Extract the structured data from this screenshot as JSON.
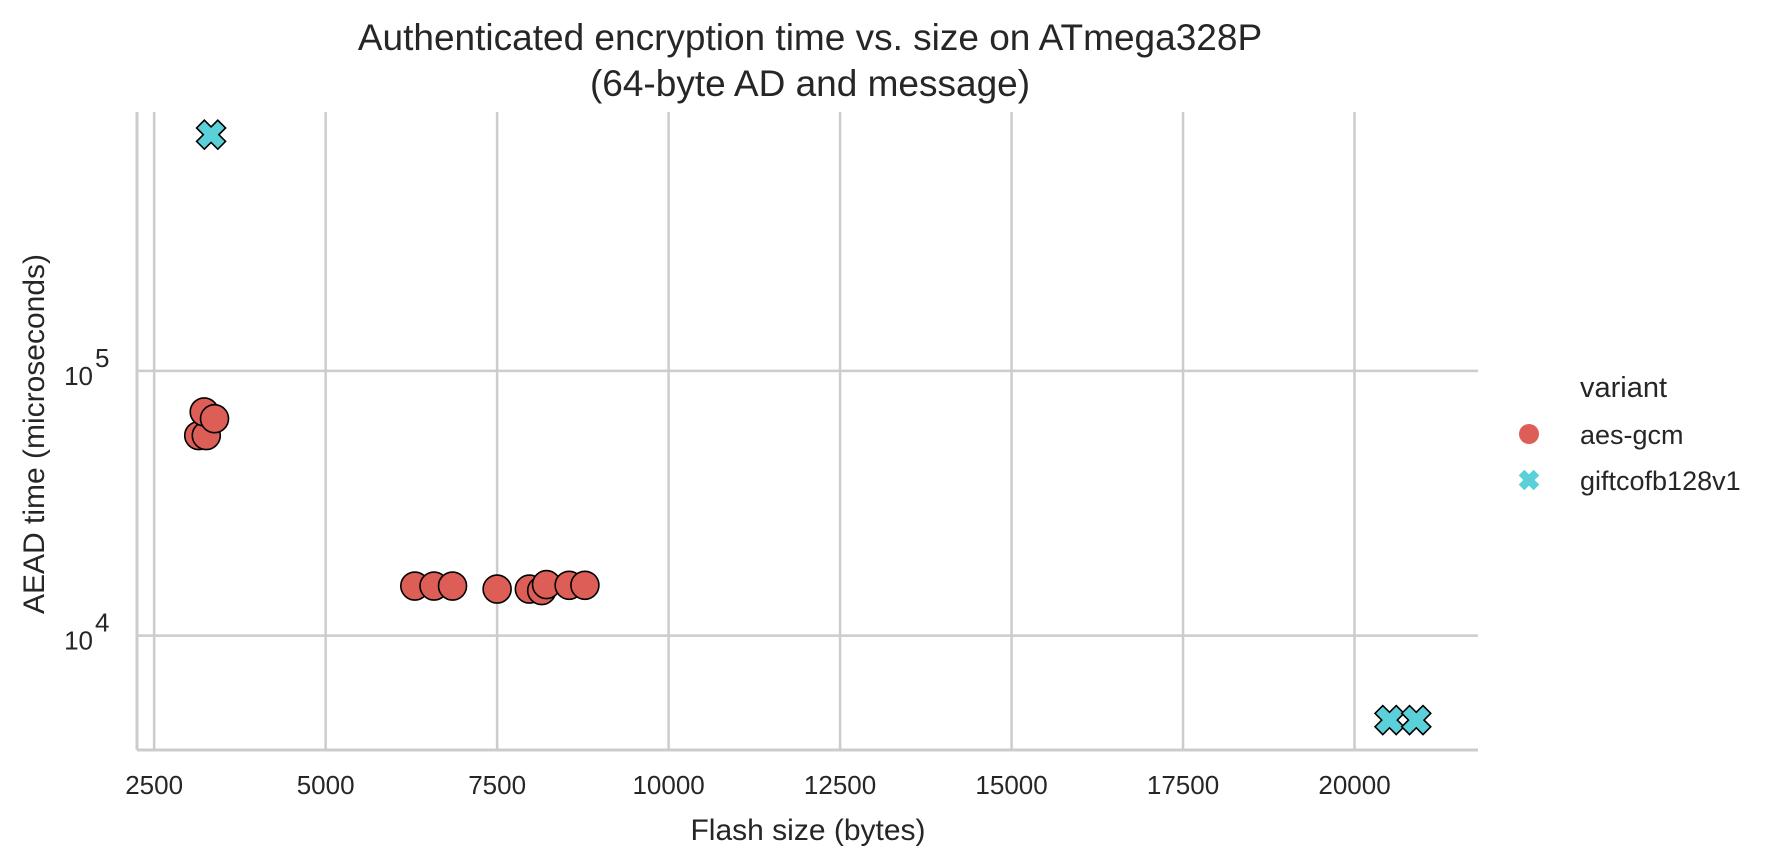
{
  "chart_data": {
    "type": "scatter",
    "title": "Authenticated encryption time vs. size on ATmega328P\n(64-byte AD and message)",
    "title_lines": [
      "Authenticated encryption time vs. size on ATmega328P",
      "(64-byte AD and message)"
    ],
    "xlabel": "Flash size (bytes)",
    "ylabel": "AEAD time (microseconds)",
    "xlim": [
      2250,
      21800
    ],
    "ylim": [
      3700,
      950000
    ],
    "y_scale": "log",
    "x_ticks": [
      2500,
      5000,
      7500,
      10000,
      12500,
      15000,
      17500,
      20000
    ],
    "x_tick_labels": [
      "2500",
      "5000",
      "7500",
      "10000",
      "12500",
      "15000",
      "17500",
      "20000"
    ],
    "y_ticks": [
      10000,
      100000
    ],
    "y_tick_labels": [
      {
        "base": "10",
        "exp": "4"
      },
      {
        "base": "10",
        "exp": "5"
      }
    ],
    "grid": true,
    "legend": {
      "title": "variant",
      "position": "right",
      "entries": [
        "aes-gcm",
        "giftcofb128v1"
      ]
    },
    "series": [
      {
        "name": "aes-gcm",
        "marker": "circle",
        "color": "#dd5e57",
        "points": [
          {
            "x": 3150,
            "y": 57000
          },
          {
            "x": 3260,
            "y": 57000
          },
          {
            "x": 3230,
            "y": 70000
          },
          {
            "x": 3380,
            "y": 66000
          },
          {
            "x": 6300,
            "y": 15400
          },
          {
            "x": 6580,
            "y": 15400
          },
          {
            "x": 6850,
            "y": 15400
          },
          {
            "x": 7500,
            "y": 15000
          },
          {
            "x": 7970,
            "y": 15000
          },
          {
            "x": 8150,
            "y": 14800
          },
          {
            "x": 8220,
            "y": 15600
          },
          {
            "x": 8550,
            "y": 15500
          },
          {
            "x": 8780,
            "y": 15500
          }
        ]
      },
      {
        "name": "giftcofb128v1",
        "marker": "x",
        "color": "#5ad0d8",
        "points": [
          {
            "x": 3330,
            "y": 780000
          },
          {
            "x": 20510,
            "y": 4800
          },
          {
            "x": 20900,
            "y": 4800
          }
        ]
      }
    ]
  }
}
